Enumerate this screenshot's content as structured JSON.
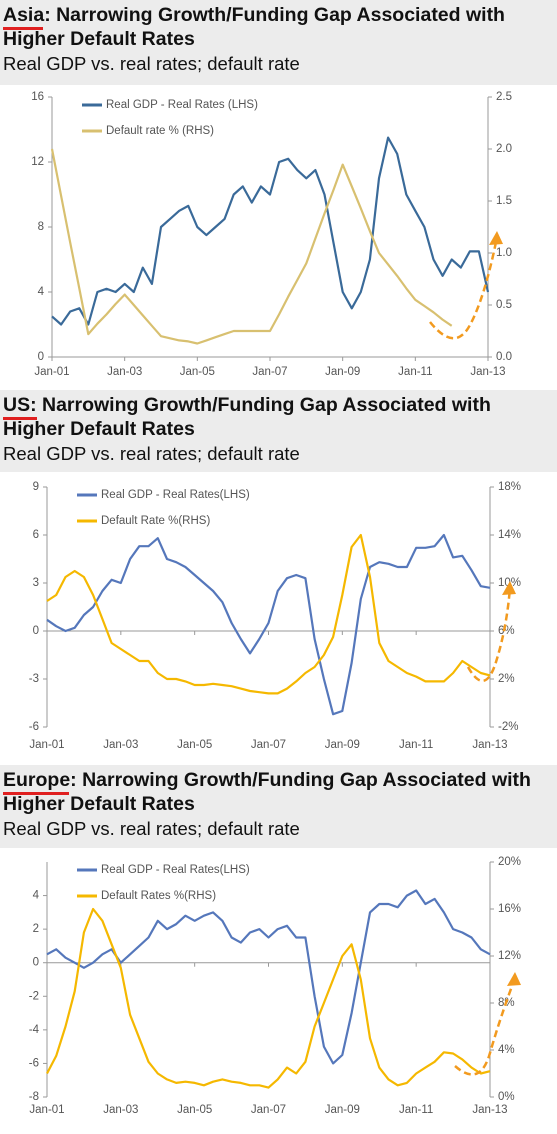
{
  "chart_data": [
    {
      "type": "line",
      "title": "Asia: Narrowing Growth/Funding Gap Associated with Higher Default Rates",
      "subtitle": "Real GDP vs. real rates; default rate",
      "categories": [
        "Jan-01",
        null,
        null,
        null,
        null,
        null,
        null,
        null,
        "Jan-03",
        null,
        null,
        null,
        null,
        null,
        null,
        null,
        "Jan-05",
        null,
        null,
        null,
        null,
        null,
        null,
        null,
        "Jan-07",
        null,
        null,
        null,
        null,
        null,
        null,
        null,
        "Jan-09",
        null,
        null,
        null,
        null,
        null,
        null,
        null,
        "Jan-11",
        null,
        null,
        null,
        null,
        null,
        null,
        null,
        "Jan-13"
      ],
      "series": [
        {
          "name": "Real GDP - Real Rates (LHS)",
          "color": "#3a6a99",
          "axis": "y",
          "values": [
            2.5,
            2,
            2.8,
            3,
            2,
            4,
            4.2,
            4,
            4.5,
            4,
            5.5,
            4.5,
            8,
            8.5,
            9,
            9.3,
            8,
            7.5,
            8,
            8.5,
            10,
            10.5,
            9.5,
            10.5,
            10,
            12,
            12.2,
            11.5,
            11,
            11.5,
            10,
            7,
            4,
            3,
            4,
            6,
            11,
            13.5,
            12.5,
            10,
            9,
            8,
            6,
            5,
            6,
            5.5,
            6.5,
            6.5,
            4
          ]
        },
        {
          "name": "Default rate % (RHS)",
          "color": "#d8c070",
          "axis": "y2",
          "values": [
            2.0,
            1.55,
            1.1,
            0.66,
            0.22,
            0.32,
            0.41,
            0.51,
            0.6,
            0.5,
            0.4,
            0.3,
            0.2,
            0.18,
            0.16,
            0.15,
            0.13,
            0.16,
            0.19,
            0.22,
            0.25,
            0.25,
            0.25,
            0.25,
            0.25,
            0.41,
            0.58,
            0.74,
            0.9,
            1.14,
            1.38,
            1.61,
            1.85,
            1.64,
            1.43,
            1.21,
            1.0,
            0.89,
            0.78,
            0.66,
            0.55,
            0.49,
            0.43,
            0.36,
            0.3,
            null,
            null,
            null,
            null
          ]
        }
      ],
      "ylim": [
        0,
        16
      ],
      "yticks": [
        0,
        4,
        8,
        12,
        16
      ],
      "y2lim": [
        0,
        2.5
      ],
      "y2ticks": [
        {
          "value": 0,
          "label": "0.0"
        },
        0.5,
        {
          "value": 1,
          "label": "1.0"
        },
        1.5,
        {
          "value": 2,
          "label": "2.0"
        },
        2.5
      ],
      "legend": "upper left"
    },
    {
      "type": "line",
      "title": "US: Narrowing Growth/Funding Gap Associated with Higher Default Rates",
      "subtitle": "Real GDP vs. real rates; default rate",
      "categories": [
        "Jan-01",
        null,
        null,
        null,
        null,
        null,
        null,
        null,
        "Jan-03",
        null,
        null,
        null,
        null,
        null,
        null,
        null,
        "Jan-05",
        null,
        null,
        null,
        null,
        null,
        null,
        null,
        "Jan-07",
        null,
        null,
        null,
        null,
        null,
        null,
        null,
        "Jan-09",
        null,
        null,
        null,
        null,
        null,
        null,
        null,
        "Jan-11",
        null,
        null,
        null,
        null,
        null,
        null,
        null,
        "Jan-13"
      ],
      "series": [
        {
          "name": "Real GDP - Real Rates(LHS)",
          "color": "#5577bb",
          "axis": "y",
          "values": [
            0.7,
            0.3,
            0,
            0.2,
            1,
            1.5,
            2.5,
            3.2,
            3,
            4.5,
            5.3,
            5.3,
            5.8,
            4.5,
            4.3,
            4,
            3.5,
            3,
            2.5,
            1.8,
            0.5,
            -0.5,
            -1.4,
            -0.5,
            0.5,
            2.5,
            3.3,
            3.5,
            3.3,
            -0.5,
            -3,
            -5.2,
            -5,
            -2,
            2,
            4,
            4.3,
            4.2,
            4,
            4,
            5.2,
            5.2,
            5.3,
            6,
            4.6,
            4.7,
            3.8,
            2.8,
            2.7
          ]
        },
        {
          "name": "Default Rate %(RHS)",
          "color": "#f5b800",
          "axis": "y2",
          "values": [
            8.5,
            9,
            10.5,
            11,
            10.5,
            9,
            7,
            5,
            4.5,
            4,
            3.5,
            3.5,
            2.5,
            2,
            2,
            1.8,
            1.5,
            1.5,
            1.6,
            1.5,
            1.4,
            1.2,
            1,
            0.9,
            0.8,
            0.8,
            1.2,
            1.8,
            2.5,
            3,
            4,
            5.5,
            9,
            13,
            14,
            10.5,
            5,
            3.5,
            3,
            2.5,
            2.2,
            1.8,
            1.8,
            1.8,
            2.5,
            3.5,
            3,
            2.5,
            2.3
          ]
        }
      ],
      "ylim": [
        -6,
        9
      ],
      "yticks": [
        -6,
        -3,
        0,
        3,
        6,
        9
      ],
      "y2lim": [
        -2,
        18
      ],
      "y2ticks": [
        {
          "value": -2,
          "label": "-2%"
        },
        {
          "value": 2,
          "label": "2%"
        },
        {
          "value": 6,
          "label": "6%"
        },
        {
          "value": 10,
          "label": "10%"
        },
        {
          "value": 14,
          "label": "14%"
        },
        {
          "value": 18,
          "label": "18%"
        }
      ],
      "legend": "upper left"
    },
    {
      "type": "line",
      "title": "Europe: Narrowing Growth/Funding Gap Associated with Higher Default Rates",
      "subtitle": "Real GDP vs. real rates; default rate",
      "categories": [
        "Jan-01",
        null,
        null,
        null,
        null,
        null,
        null,
        null,
        "Jan-03",
        null,
        null,
        null,
        null,
        null,
        null,
        null,
        "Jan-05",
        null,
        null,
        null,
        null,
        null,
        null,
        null,
        "Jan-07",
        null,
        null,
        null,
        null,
        null,
        null,
        null,
        "Jan-09",
        null,
        null,
        null,
        null,
        null,
        null,
        null,
        "Jan-11",
        null,
        null,
        null,
        null,
        null,
        null,
        null,
        "Jan-13"
      ],
      "series": [
        {
          "name": "Real GDP - Real Rates(LHS)",
          "color": "#5577bb",
          "axis": "y",
          "values": [
            0.5,
            0.8,
            0.3,
            0,
            -0.3,
            0,
            0.5,
            0.8,
            0,
            0.5,
            1,
            1.5,
            2.5,
            2,
            2.3,
            2.8,
            2.5,
            2.8,
            3,
            2.5,
            1.5,
            1.2,
            1.8,
            2,
            1.5,
            2,
            2.2,
            1.5,
            1.5,
            -2,
            -5,
            -6,
            -5.5,
            -3,
            0,
            3,
            3.5,
            3.5,
            3.3,
            4,
            4.3,
            3.5,
            3.8,
            3,
            2,
            1.8,
            1.5,
            0.8,
            0.5
          ]
        },
        {
          "name": "Default Rates %(RHS)",
          "color": "#f5b800",
          "axis": "y2",
          "values": [
            2,
            3.5,
            6,
            9,
            14,
            16,
            15,
            13,
            11,
            7,
            5,
            3,
            2,
            1.5,
            1.2,
            1.3,
            1.2,
            1,
            1.3,
            1.5,
            1.3,
            1.2,
            1,
            1,
            0.8,
            1.5,
            2.5,
            2,
            3,
            6,
            8,
            10,
            12,
            13,
            10,
            5,
            2.5,
            1.5,
            1,
            1.2,
            2,
            2.5,
            3,
            3.8,
            3.7,
            3.2,
            2.5,
            2,
            2.2
          ]
        }
      ],
      "ylim": [
        -8,
        6
      ],
      "yticks": [
        -8,
        -6,
        -4,
        -2,
        0,
        2,
        4
      ],
      "y2lim": [
        0,
        20
      ],
      "y2ticks": [
        {
          "value": 0,
          "label": "0%"
        },
        {
          "value": 4,
          "label": "4%"
        },
        {
          "value": 8,
          "label": "8%"
        },
        {
          "value": 12,
          "label": "12%"
        },
        {
          "value": 16,
          "label": "16%"
        },
        {
          "value": 20,
          "label": "20%"
        }
      ],
      "legend": "upper left"
    }
  ]
}
